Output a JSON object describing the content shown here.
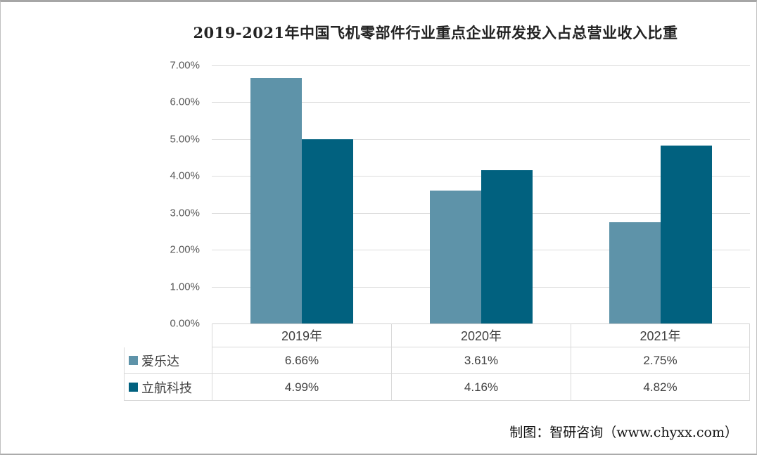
{
  "chart_data": {
    "type": "bar",
    "title": "2019-2021年中国飞机零部件行业重点企业研发投入占总营业收入比重",
    "categories": [
      "2019年",
      "2020年",
      "2021年"
    ],
    "series": [
      {
        "name": "爱乐达",
        "color": "#5E93A9",
        "values": [
          6.66,
          3.61,
          2.75
        ]
      },
      {
        "name": "立航科技",
        "color": "#01617F",
        "values": [
          4.99,
          4.16,
          4.82
        ]
      }
    ],
    "xlabel": "",
    "ylabel": "",
    "ylim": [
      0,
      7
    ],
    "y_ticks": [
      "7.00%",
      "6.00%",
      "5.00%",
      "4.00%",
      "3.00%",
      "2.00%",
      "1.00%",
      "0.00%"
    ],
    "grid": true,
    "legend_position": "table-left-below-chart"
  },
  "table": {
    "header": [
      "2019年",
      "2020年",
      "2021年"
    ],
    "rows": [
      {
        "legend": "爱乐达",
        "cells": [
          "6.66%",
          "3.61%",
          "2.75%"
        ]
      },
      {
        "legend": "立航科技",
        "cells": [
          "4.99%",
          "4.16%",
          "4.82%"
        ]
      }
    ]
  },
  "footer": {
    "credit": "制图：智研咨询（www.chyxx.com）"
  },
  "colors": {
    "series_1": "#5E93A9",
    "series_2": "#01617F",
    "gridline": "#DCDCDC",
    "table_border": "#D9D9D9",
    "tick_text": "#595959",
    "table_text": "#404040"
  }
}
